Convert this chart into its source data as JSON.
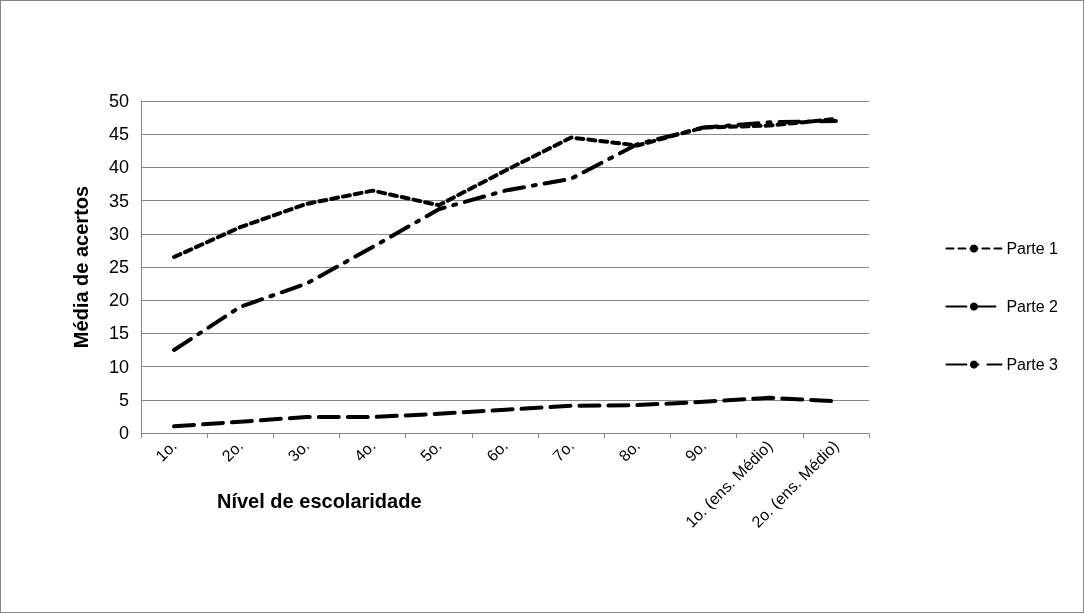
{
  "chart_data": {
    "type": "line",
    "xlabel": "Nível de escolaridade",
    "ylabel": "Média de acertos",
    "categories": [
      "1o.",
      "2o.",
      "3o.",
      "4o.",
      "5o.",
      "6o.",
      "7o.",
      "8o.",
      "9o.",
      "1o. (ens. Médio)",
      "2o. (ens. Médio)"
    ],
    "series": [
      {
        "name": "Parte 1",
        "color": "#000000",
        "line_style": "dotted",
        "values": [
          26.5,
          31,
          34.5,
          36.5,
          34.3,
          39.5,
          44.5,
          43.3,
          46,
          46.3,
          47.3
        ]
      },
      {
        "name": "Parte 2",
        "color": "#000000",
        "line_style": "dashed",
        "values": [
          1,
          1.7,
          2.4,
          2.4,
          2.9,
          3.5,
          4.1,
          4.2,
          4.7,
          5.3,
          4.8
        ]
      },
      {
        "name": "Parte 3",
        "color": "#000000",
        "line_style": "dashdot",
        "values": [
          12.5,
          19,
          22.5,
          28,
          33.7,
          36.5,
          38.3,
          43.5,
          46,
          46.8,
          47
        ]
      }
    ],
    "ylim": [
      0,
      50
    ],
    "yticks": [
      0,
      5,
      10,
      15,
      20,
      25,
      30,
      35,
      40,
      45,
      50
    ],
    "grid": "y",
    "legend": "right",
    "marker": "none"
  }
}
